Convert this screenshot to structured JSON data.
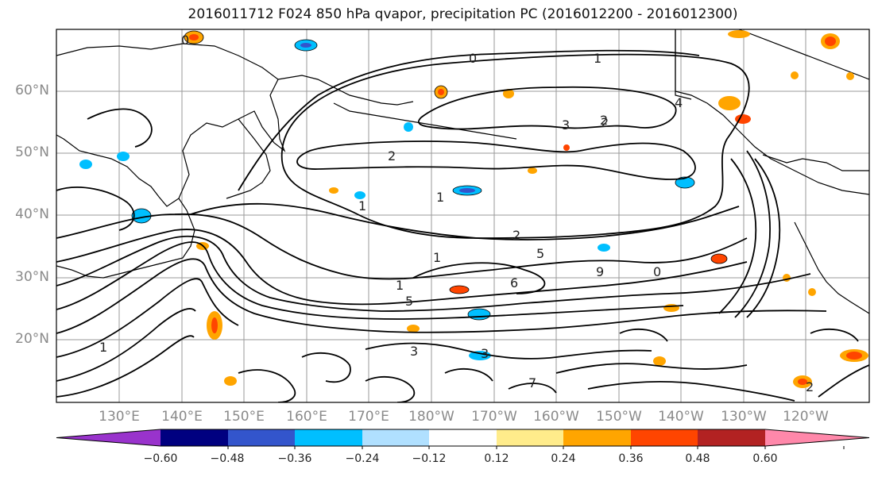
{
  "title": "2016011712 F024 850 hPa qvapor, precipitation PC (2016012200 - 2016012300)",
  "lat_labels": [
    "60°N",
    "50°N",
    "40°N",
    "30°N",
    "20°N"
  ],
  "lon_labels": [
    "130°E",
    "140°E",
    "150°E",
    "160°E",
    "170°E",
    "180°W",
    "170°W",
    "160°W",
    "150°W",
    "140°W",
    "130°W",
    "120°W"
  ],
  "colorbar": {
    "colors": [
      "#9933cc",
      "#000080",
      "#3355cc",
      "#00bfff",
      "#b0e0ff",
      "#ffffff",
      "#ffec8b",
      "#ffa500",
      "#ff4500",
      "#b22222",
      "#ff88aa"
    ],
    "tick_labels": [
      "−0.60",
      "−0.48",
      "−0.36",
      "−0.24",
      "−0.12",
      "0.12",
      "0.24",
      "0.36",
      "0.48",
      "0.60"
    ]
  },
  "contour_labels": [
    "0",
    "1",
    "2",
    "3",
    "1",
    "2",
    "1",
    "3",
    "4",
    "2",
    "6",
    "5",
    "9",
    "0",
    "1",
    "3",
    "7",
    "2",
    "5",
    "1",
    "0",
    "2",
    "1"
  ]
}
